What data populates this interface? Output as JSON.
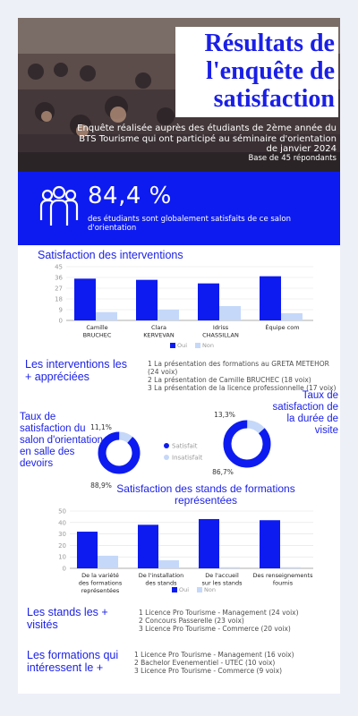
{
  "header": {
    "title": "Résultats de l'enquête de satisfaction",
    "subtitle": "Enquête réalisée auprès des étudiants de 2ème année du BTS Tourisme qui ont participé au séminaire d'orientation de janvier 2024",
    "sample": "Base de 45 répondants"
  },
  "banner": {
    "percent": "84,4 %",
    "text": "des étudiants sont globalement satisfaits de ce salon d'orientation",
    "icon": "people-group-icon"
  },
  "interventions": {
    "title": "Satisfaction des interventions",
    "top_title": "Les interventions les + appréciées",
    "top_list": [
      "1 La présentation des formations au GRETA METEHOR (24 voix)",
      "2 La présentation de Camille BRUCHEC (18 voix)",
      "3 La présentation de la licence professionnelle (17 voix)"
    ]
  },
  "pies": {
    "salon_title": "Taux de satisfaction du salon d'orientation en salle des devoirs",
    "duree_title": "Taux de satisfaction de la durée de visite",
    "legend_satisfait": "Satisfait",
    "legend_insatisfait": "Insatisfait",
    "salon_sat_label": "88,9%",
    "salon_insat_label": "11,1%",
    "duree_sat_label": "86,7%",
    "duree_insat_label": "13,3%"
  },
  "stands": {
    "title": "Satisfaction des stands de formations représentées",
    "visited_title": "Les stands les + visités",
    "visited_list": [
      "1 Licence Pro Tourisme - Management (24 voix)",
      "2 Concours Passerelle (23 voix)",
      "3 Licence Pro Tourisme - Commerce (20 voix)"
    ],
    "interest_title": "Les formations qui intéressent le +",
    "interest_list": [
      "1 Licence Pro Tourisme - Management (16 voix)",
      "2 Bachelor Evenementiel - UTEC (10 voix)",
      "3 Licence Pro Tourisme - Commerce (9 voix)"
    ]
  },
  "colors": {
    "primary": "#0d1bf0",
    "secondary": "#c5d8fa",
    "accent_text": "#1a1fe6"
  },
  "chart_data": [
    {
      "type": "bar",
      "title": "Satisfaction des interventions",
      "categories": [
        [
          "Camille",
          "BRUCHEC"
        ],
        [
          "Clara",
          "KERVEVAN"
        ],
        [
          "Idriss",
          "CHASSILLAN"
        ],
        [
          "Équipe com"
        ]
      ],
      "series": [
        {
          "name": "Oui",
          "values": [
            35,
            34,
            31,
            37
          ]
        },
        {
          "name": "Non",
          "values": [
            7,
            9,
            12,
            6
          ]
        }
      ],
      "yticks": [
        0,
        9,
        18,
        27,
        36,
        45
      ],
      "ylim": [
        0,
        45
      ],
      "legend": "bottom"
    },
    {
      "type": "pie",
      "title": "Taux de satisfaction du salon d'orientation en salle des devoirs",
      "categories": [
        "Satisfait",
        "Insatisfait"
      ],
      "values": [
        88.9,
        11.1
      ]
    },
    {
      "type": "pie",
      "title": "Taux de satisfaction de la durée de visite",
      "categories": [
        "Satisfait",
        "Insatisfait"
      ],
      "values": [
        86.7,
        13.3
      ]
    },
    {
      "type": "bar",
      "title": "Satisfaction des stands de formations représentées",
      "categories": [
        [
          "De la variété",
          "des formations",
          "représentées"
        ],
        [
          "De l'installation",
          "des stands"
        ],
        [
          "De l'accueil",
          "sur les stands"
        ],
        [
          "Des renseignements",
          "fournis"
        ]
      ],
      "series": [
        {
          "name": "Oui",
          "values": [
            32,
            38,
            43,
            42
          ]
        },
        {
          "name": "Non",
          "values": [
            11,
            7,
            1,
            1
          ]
        }
      ],
      "yticks": [
        0,
        10,
        20,
        30,
        40,
        50
      ],
      "ylim": [
        0,
        50
      ],
      "legend": "bottom"
    }
  ]
}
